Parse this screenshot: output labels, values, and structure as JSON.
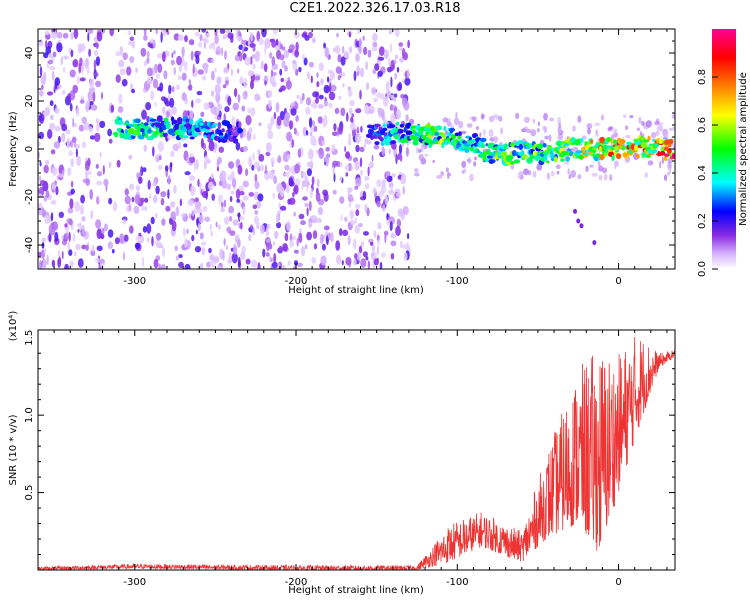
{
  "title": "C2E1.2022.326.17.03.R18",
  "chart_data": [
    {
      "type": "heatmap",
      "xlabel": "Height of straight line (km)",
      "ylabel": "Frequency (Hz)",
      "xlim": [
        -360,
        35
      ],
      "ylim": [
        -50,
        50
      ],
      "xticks": [
        -300,
        -200,
        -100,
        0
      ],
      "yticks": [
        -40,
        -20,
        0,
        20,
        40
      ],
      "colorbar": {
        "label": "Normalized spectral amplitude",
        "range": [
          0.0,
          1.0
        ],
        "ticks": [
          "0.0",
          "0.2",
          "0.4",
          "0.6",
          "0.8"
        ],
        "colors": [
          "#ffffff",
          "#d9b8ff",
          "#8a2be2",
          "#0000ff",
          "#00ffff",
          "#00ff00",
          "#ffff00",
          "#ff8000",
          "#ff0000",
          "#ff0090"
        ]
      },
      "ridge": [
        {
          "x": -312,
          "y": 10,
          "amp": 0.45
        },
        {
          "x": -300,
          "y": 8,
          "amp": 0.5
        },
        {
          "x": -280,
          "y": 9,
          "amp": 0.45
        },
        {
          "x": -260,
          "y": 8,
          "amp": 0.4
        },
        {
          "x": -240,
          "y": 7,
          "amp": 0.25
        },
        {
          "x": -150,
          "y": 6,
          "amp": 0.3
        },
        {
          "x": -130,
          "y": 7,
          "amp": 0.5
        },
        {
          "x": -110,
          "y": 5,
          "amp": 0.6
        },
        {
          "x": -90,
          "y": 2,
          "amp": 0.45
        },
        {
          "x": -75,
          "y": -3,
          "amp": 0.55
        },
        {
          "x": -60,
          "y": -1,
          "amp": 0.55
        },
        {
          "x": -45,
          "y": -2,
          "amp": 0.6
        },
        {
          "x": -30,
          "y": 0,
          "amp": 0.6
        },
        {
          "x": -15,
          "y": 0,
          "amp": 0.75
        },
        {
          "x": 0,
          "y": 0,
          "amp": 0.85
        },
        {
          "x": 15,
          "y": 1,
          "amp": 0.9
        },
        {
          "x": 30,
          "y": 0,
          "amp": 0.92
        }
      ]
    },
    {
      "type": "line",
      "xlabel": "Height of straight line (km)",
      "ylabel": "SNR (10 * v/v)",
      "scale_label": "(x10⁴)",
      "xlim": [
        -360,
        35
      ],
      "ylim": [
        0,
        1.55
      ],
      "xticks": [
        -300,
        -200,
        -100,
        0
      ],
      "yticks": [
        0.5,
        1.0,
        1.5
      ],
      "series": [
        {
          "color": "#ee3333",
          "envelope": [
            {
              "x": -360,
              "base": 0.0,
              "peak": 0.02
            },
            {
              "x": -300,
              "base": 0.01,
              "peak": 0.04
            },
            {
              "x": -200,
              "base": 0.0,
              "peak": 0.03
            },
            {
              "x": -125,
              "base": 0.0,
              "peak": 0.03
            },
            {
              "x": -105,
              "base": 0.05,
              "peak": 0.3
            },
            {
              "x": -85,
              "base": 0.15,
              "peak": 0.38
            },
            {
              "x": -60,
              "base": 0.05,
              "peak": 0.25
            },
            {
              "x": -45,
              "base": 0.2,
              "peak": 0.75
            },
            {
              "x": -25,
              "base": 0.3,
              "peak": 1.3
            },
            {
              "x": -12,
              "base": 0.1,
              "peak": 1.45
            },
            {
              "x": 0,
              "base": 0.5,
              "peak": 1.4
            },
            {
              "x": 12,
              "base": 0.9,
              "peak": 1.55
            },
            {
              "x": 25,
              "base": 1.3,
              "peak": 1.4
            },
            {
              "x": 35,
              "base": 1.38,
              "peak": 1.42
            }
          ]
        }
      ]
    }
  ]
}
